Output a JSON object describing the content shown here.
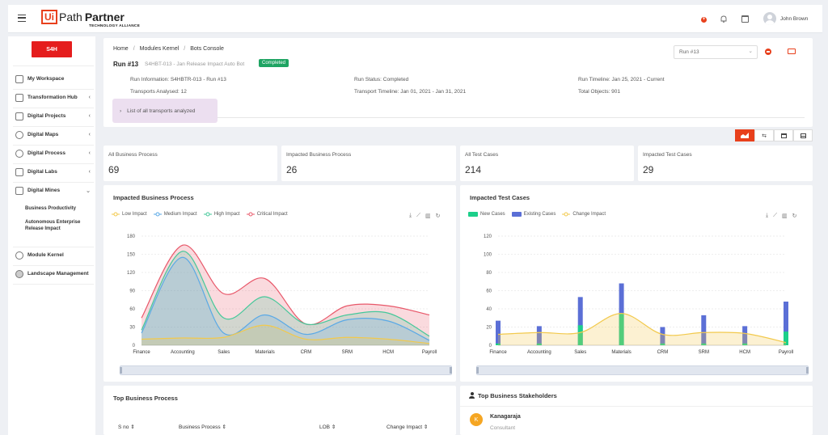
{
  "header": {
    "logo_ui": "Ui",
    "logo_path": "Path",
    "logo_partner": "Partner",
    "logo_tagline": "TECHNOLOGY ALLIANCE",
    "user_name": "John Brown"
  },
  "sidebar": {
    "badge": "S4H",
    "items": [
      {
        "label": "My Workspace"
      },
      {
        "label": "Transformation Hub"
      },
      {
        "label": "Digital Projects"
      },
      {
        "label": "Digital Maps"
      },
      {
        "label": "Digital Process"
      },
      {
        "label": "Digital Labs"
      },
      {
        "label": "Digital Mines"
      },
      {
        "label": "Module Kernel"
      },
      {
        "label": "Landscape Management"
      }
    ],
    "subitems": [
      "Business Productivity",
      "Autonomous Enterprise Release Impact"
    ]
  },
  "breadcrumb": {
    "home": "Home",
    "sep": "/",
    "module": "Modules Kernel",
    "current": "Bots Console"
  },
  "run": {
    "title": "Run #13",
    "subtitle": "S4HBT-013 - Jan Release Impact Auto Bot",
    "status_badge": "Completed",
    "select_value": "Run #13",
    "info": [
      "Run Information: S4HBTR-013 - Run #13",
      "Transports Analysed: 12",
      "Run Status: Completed",
      "Transport Timeline: Jan 01, 2021 - Jan 31, 2021",
      "Run Timeline: Jan 25, 2021 - Current",
      "Total Objects: 901"
    ],
    "expander": "List of all transports analyzed"
  },
  "stats": [
    {
      "title": "All Business Process",
      "value": "69"
    },
    {
      "title": "Impacted Business Process",
      "value": "26"
    },
    {
      "title": "All Test Cases",
      "value": "214"
    },
    {
      "title": "Impacted Test Cases",
      "value": "29"
    }
  ],
  "colors": {
    "brand": "#e8401c",
    "completed": "#1fa463",
    "low": "#f2c94c",
    "medium": "#5aa9e6",
    "high": "#45c89a",
    "critical": "#e8586a",
    "new": "#1ccf8a",
    "existing": "#5b6fd6",
    "change": "#f2c94c"
  },
  "chart_data": [
    {
      "type": "area",
      "title": "Impacted Business Process",
      "categories": [
        "Finance",
        "Accounting",
        "Sales",
        "Materials",
        "CRM",
        "SRM",
        "HCM",
        "Payroll"
      ],
      "ylim": [
        0,
        180
      ],
      "yticks": [
        "0",
        "30",
        "60",
        "90",
        "120",
        "150",
        "180"
      ],
      "series": [
        {
          "name": "Low Impact",
          "values": [
            10,
            12,
            13,
            33,
            10,
            13,
            10,
            3
          ]
        },
        {
          "name": "Medium Impact",
          "values": [
            20,
            145,
            20,
            50,
            18,
            42,
            40,
            8
          ]
        },
        {
          "name": "High Impact",
          "values": [
            25,
            155,
            45,
            80,
            35,
            50,
            53,
            15
          ]
        },
        {
          "name": "Critical Impact",
          "values": [
            45,
            165,
            85,
            110,
            35,
            65,
            65,
            50
          ]
        }
      ],
      "legend": "top-left"
    },
    {
      "type": "bar",
      "title": "Impacted Test Cases",
      "categories": [
        "Finance",
        "Accounting",
        "Sales",
        "Materials",
        "CRM",
        "SRM",
        "HCM",
        "Payroll"
      ],
      "ylim": [
        0,
        120
      ],
      "yticks": [
        "0",
        "20",
        "40",
        "60",
        "80",
        "100",
        "120"
      ],
      "series": [
        {
          "name": "New Cases",
          "values": [
            2,
            2,
            22,
            35,
            2,
            2,
            2,
            15
          ]
        },
        {
          "name": "Existing Cases",
          "values": [
            27,
            21,
            53,
            68,
            20,
            33,
            21,
            48
          ]
        },
        {
          "name": "Change Impact",
          "values": [
            12,
            14,
            14,
            35,
            12,
            14,
            13,
            3
          ]
        }
      ],
      "legend": "top-left"
    }
  ],
  "bottom": {
    "left_title": "Top Business Process",
    "columns": [
      "S no",
      "Business Process",
      "LOB",
      "Change Impact"
    ],
    "right_title": "Top Business Stakeholders",
    "stakeholder_name": "Kanagaraja",
    "stakeholder_role": "Consultant",
    "avatar_letter": "K"
  }
}
